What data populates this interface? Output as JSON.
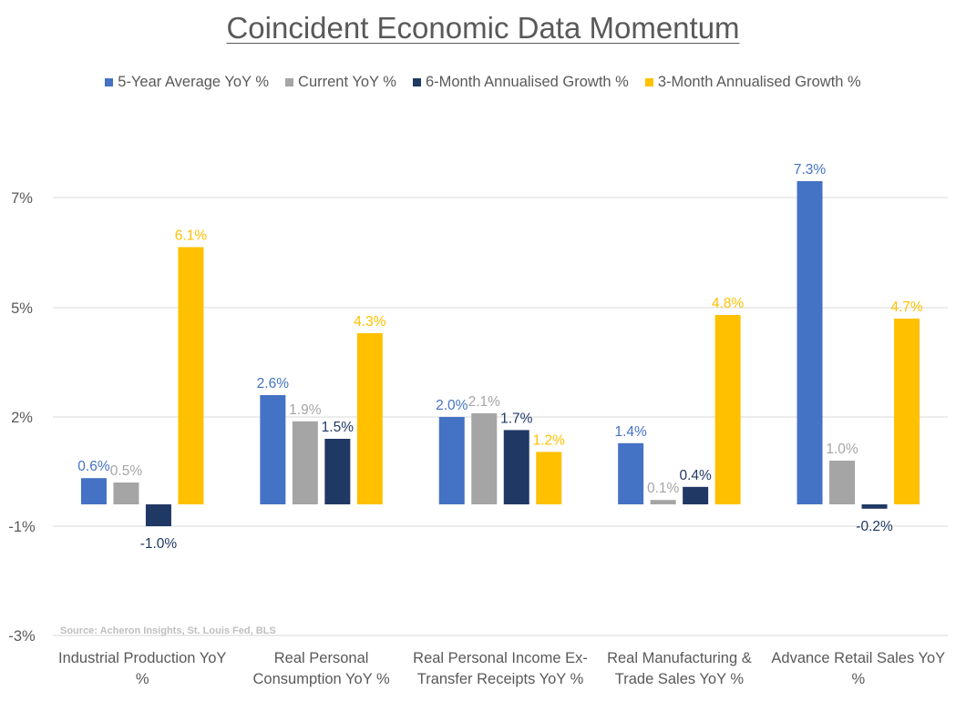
{
  "chart_data": {
    "type": "bar",
    "title": "Coincident Economic Data Momentum",
    "xlabel": "",
    "ylabel": "",
    "categories": [
      "Industrial Production YoY %",
      "Real Personal Consumption YoY %",
      "Real Personal Income Ex-Transfer Receipts YoY %",
      "Real Manufacturing & Trade Sales YoY %",
      "Advance Retail Sales YoY %"
    ],
    "category_lines": [
      [
        "Industrial Production YoY",
        "%"
      ],
      [
        "Real Personal",
        "Consumption YoY %"
      ],
      [
        "Real Personal Income Ex-",
        "Transfer Receipts YoY %"
      ],
      [
        "Real Manufacturing &",
        "Trade Sales YoY %"
      ],
      [
        "Advance Retail Sales YoY",
        "%"
      ]
    ],
    "series": [
      {
        "name": "5-Year Average YoY %",
        "color": "#4472C4",
        "values": [
          0.6,
          2.6,
          2.0,
          1.4,
          7.3
        ],
        "labels": [
          "0.6%",
          "2.6%",
          "2.0%",
          "1.4%",
          "7.3%"
        ]
      },
      {
        "name": "Current YoY %",
        "color": "#A5A5A5",
        "values": [
          0.5,
          1.9,
          2.1,
          0.1,
          1.0
        ],
        "labels": [
          "0.5%",
          "1.9%",
          "2.1%",
          "0.1%",
          "1.0%"
        ]
      },
      {
        "name": "6-Month Annualised Growth %",
        "color": "#203864",
        "values": [
          -1.0,
          1.5,
          1.7,
          0.4,
          -0.2
        ],
        "labels": [
          "-1.0%",
          "1.5%",
          "1.7%",
          "0.4%",
          "-0.2%"
        ]
      },
      {
        "name": "3-Month Annualised Growth %",
        "color": "#FFC000",
        "values": [
          6.1,
          4.3,
          1.2,
          4.8,
          4.7
        ],
        "labels": [
          "6.1%",
          "4.3%",
          "1.2%",
          "4.8%",
          "4.7%"
        ]
      }
    ],
    "yticks": [
      7,
      5,
      2,
      -1,
      -3
    ],
    "ytick_labels": [
      "7%",
      "5%",
      "2%",
      "-1%",
      "-3%"
    ],
    "ylim": [
      -3,
      7.5
    ],
    "grid": true,
    "legend_position": "top",
    "source": "Source: Acheron Insights, St. Louis Fed, BLS"
  }
}
